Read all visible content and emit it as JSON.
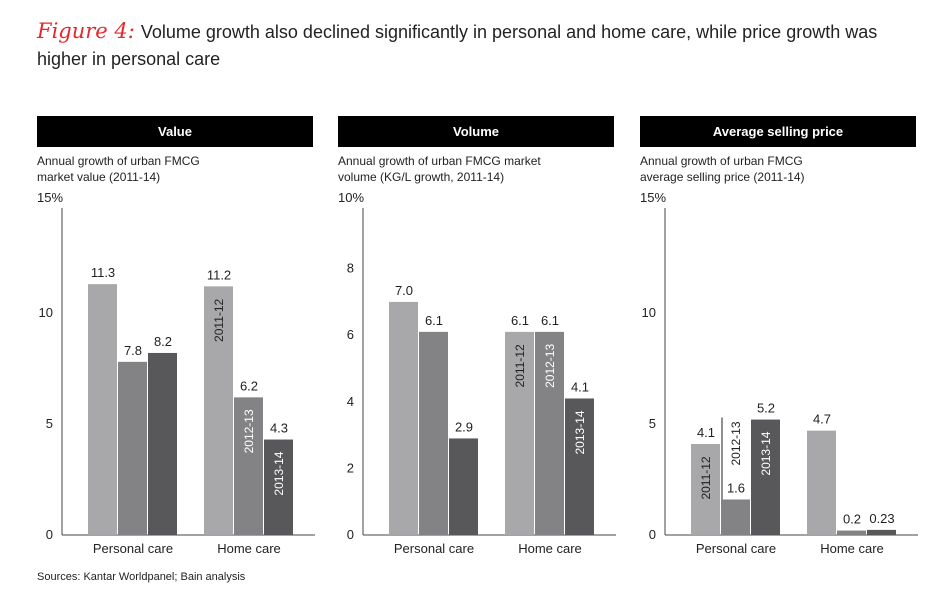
{
  "figure": {
    "label": "Figure 4:",
    "title": "Volume growth also declined significantly in personal and home care, while price growth was higher in personal care"
  },
  "source": "Sources: Kantar Worldpanel; Bain analysis",
  "colors": {
    "s2011": "#a8a8aa",
    "s2012": "#838385",
    "s2013": "#58585a",
    "header": "#000000",
    "accent": "#e8272d"
  },
  "chart_data": [
    {
      "type": "bar",
      "header": "Value",
      "subtitle": "Annual growth of urban FMCG market value (2011-14)",
      "unit_label": "15%",
      "categories": [
        "Personal care",
        "Home care"
      ],
      "ylim": [
        0,
        15
      ],
      "yticks": [
        0,
        5,
        10
      ],
      "series": [
        {
          "name": "2011-12",
          "values": [
            11.3,
            11.2
          ]
        },
        {
          "name": "2012-13",
          "values": [
            7.8,
            6.2
          ]
        },
        {
          "name": "2013-14",
          "values": [
            8.2,
            4.3
          ]
        }
      ],
      "data_labels": [
        [
          "11.3",
          "7.8",
          "8.2"
        ],
        [
          "11.2",
          "6.2",
          "4.3"
        ]
      ],
      "series_label_group": 1
    },
    {
      "type": "bar",
      "header": "Volume",
      "subtitle": "Annual growth of urban FMCG market volume (KG/L growth, 2011-14)",
      "unit_label": "10%",
      "categories": [
        "Personal care",
        "Home care"
      ],
      "ylim": [
        0,
        10
      ],
      "yticks": [
        0,
        2,
        4,
        6,
        8
      ],
      "series": [
        {
          "name": "2011-12",
          "values": [
            7.0,
            6.1
          ]
        },
        {
          "name": "2012-13",
          "values": [
            6.1,
            6.1
          ]
        },
        {
          "name": "2013-14",
          "values": [
            2.9,
            4.1
          ]
        }
      ],
      "data_labels": [
        [
          "7.0",
          "6.1",
          "2.9"
        ],
        [
          "6.1",
          "6.1",
          "4.1"
        ]
      ],
      "series_label_group": 1
    },
    {
      "type": "bar",
      "header": "Average selling price",
      "subtitle": "Annual growth of urban FMCG average selling price (2011-14)",
      "unit_label": "15%",
      "categories": [
        "Personal care",
        "Home care"
      ],
      "ylim": [
        0,
        15
      ],
      "yticks": [
        0,
        5,
        10
      ],
      "series": [
        {
          "name": "2011-12",
          "values": [
            4.1,
            4.7
          ]
        },
        {
          "name": "2012-13",
          "values": [
            1.6,
            0.2
          ]
        },
        {
          "name": "2013-14",
          "values": [
            5.2,
            0.23
          ]
        }
      ],
      "data_labels": [
        [
          "4.1",
          "1.6",
          "5.2"
        ],
        [
          "4.7",
          "0.2",
          "0.23"
        ]
      ],
      "series_label_group": 0
    }
  ]
}
